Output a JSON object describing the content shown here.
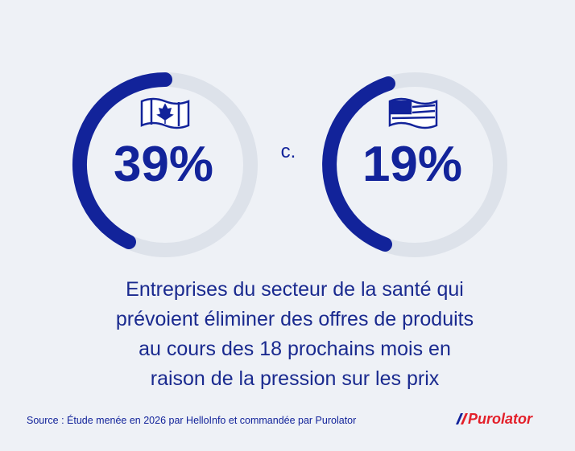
{
  "stats": [
    {
      "country": "Canada",
      "value": "39%"
    },
    {
      "country": "USA",
      "value": "19%"
    }
  ],
  "separator": "c.",
  "caption": [
    "Entreprises du secteur de la santé qui",
    "prévoient éliminer des offres de produits",
    "au cours des 18 prochains mois en",
    "raison de la pression sur les prix"
  ],
  "source": "Source : Étude menée en 2026 par HelloInfo et commandée par Purolator",
  "logo": "Purolator"
}
